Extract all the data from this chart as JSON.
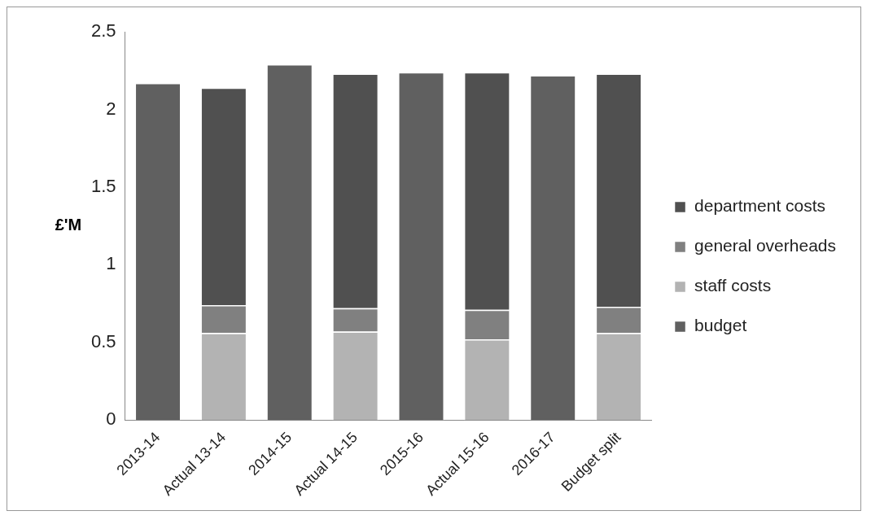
{
  "chart_data": {
    "type": "bar",
    "ylabel": "£'M",
    "stacked": true,
    "legend": "right",
    "grid": false,
    "categories": [
      "2013-14",
      "Actual 13-14",
      "2014-15",
      "Actual 14-15",
      "2015-16",
      "Actual 15-16",
      "2016-17",
      "Budget split"
    ],
    "series": [
      {
        "name": "budget",
        "color": "#606060",
        "values": [
          2.17,
          null,
          2.29,
          null,
          2.24,
          null,
          2.22,
          null
        ]
      },
      {
        "name": "staff costs",
        "color": "#b3b3b3",
        "values": [
          null,
          0.56,
          null,
          0.57,
          null,
          0.52,
          null,
          0.56
        ]
      },
      {
        "name": "general overheads",
        "color": "#808080",
        "values": [
          null,
          0.18,
          null,
          0.15,
          null,
          0.19,
          null,
          0.17
        ]
      },
      {
        "name": "department costs",
        "color": "#505050",
        "values": [
          null,
          1.4,
          null,
          1.51,
          null,
          1.53,
          null,
          1.5
        ]
      }
    ],
    "ylim": [
      0,
      2.5
    ],
    "yticks": [
      0,
      0.5,
      1,
      1.5,
      2,
      2.5
    ]
  }
}
